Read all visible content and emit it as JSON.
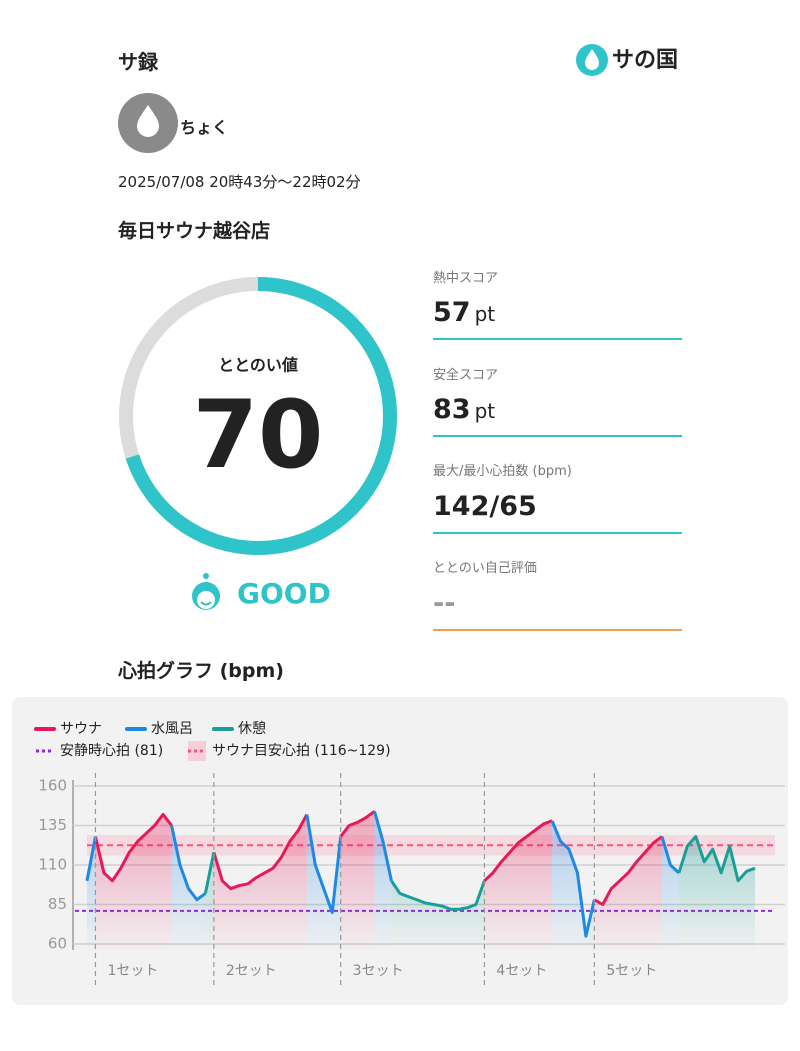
{
  "header": {
    "app_title": "サ録",
    "logo": "サの国"
  },
  "user": {
    "name": "ちょく"
  },
  "session": {
    "datetime": "2025/07/08 20時43分〜22時02分",
    "facility": "毎日サウナ越谷店"
  },
  "gauge": {
    "label": "ととのい値",
    "value": 70,
    "scale_max": 100,
    "rating": "GOOD",
    "color": "#2ec4c9"
  },
  "metrics": [
    {
      "label": "熱中スコア",
      "value": 57,
      "unit": "pt"
    },
    {
      "label": "安全スコア",
      "value": 83,
      "unit": "pt"
    },
    {
      "label": "最大/最小心拍数 (bpm)",
      "value": "142/65"
    },
    {
      "label": "ととのい自己評価",
      "value": "--"
    }
  ],
  "chart_data": {
    "type": "line",
    "title": "心拍グラフ (bpm)",
    "ylim": [
      60,
      160
    ],
    "yticks": [
      160,
      135,
      110,
      85,
      60
    ],
    "grid": true,
    "series": [
      {
        "name": "サウナ",
        "color": "#e8195a",
        "values": [
          null,
          128,
          105,
          100,
          108,
          118,
          125,
          130,
          135,
          142,
          135,
          null,
          null,
          null,
          null,
          118,
          100,
          95,
          97,
          98,
          102,
          105,
          108,
          115,
          125,
          132,
          142,
          null,
          null,
          null,
          128,
          135,
          137,
          140,
          144,
          null,
          null,
          null,
          null,
          null,
          null,
          null,
          null,
          null,
          null,
          null,
          null,
          100,
          105,
          112,
          118,
          124,
          128,
          132,
          136,
          138,
          null,
          null,
          null,
          null,
          88,
          85,
          95,
          100,
          105,
          112,
          118,
          124,
          128,
          null,
          null,
          null,
          null,
          null,
          null,
          null,
          null,
          null,
          null,
          null
        ]
      },
      {
        "name": "水風呂",
        "color": "#1e88e5",
        "values": [
          100,
          128,
          null,
          null,
          null,
          null,
          null,
          null,
          null,
          null,
          135,
          110,
          95,
          88,
          92,
          null,
          null,
          null,
          null,
          null,
          null,
          null,
          null,
          null,
          null,
          null,
          142,
          110,
          95,
          80,
          128,
          null,
          null,
          null,
          144,
          125,
          100,
          null,
          null,
          null,
          null,
          null,
          null,
          null,
          null,
          null,
          null,
          null,
          null,
          null,
          null,
          null,
          null,
          null,
          null,
          138,
          125,
          120,
          105,
          65,
          88,
          null,
          null,
          null,
          null,
          null,
          null,
          null,
          128,
          110,
          105,
          null,
          null,
          null,
          null,
          null,
          null,
          null,
          null,
          null
        ]
      },
      {
        "name": "休憩",
        "color": "#1a9e96",
        "values": [
          null,
          null,
          null,
          null,
          null,
          null,
          null,
          null,
          null,
          null,
          null,
          null,
          null,
          null,
          92,
          118,
          null,
          null,
          null,
          null,
          null,
          null,
          null,
          null,
          null,
          null,
          null,
          null,
          null,
          null,
          null,
          null,
          null,
          null,
          null,
          null,
          100,
          92,
          90,
          88,
          86,
          85,
          84,
          82,
          82,
          83,
          85,
          100,
          null,
          null,
          null,
          null,
          null,
          null,
          null,
          null,
          null,
          null,
          null,
          null,
          null,
          null,
          null,
          null,
          null,
          null,
          null,
          null,
          null,
          null,
          105,
          122,
          128,
          112,
          120,
          105,
          122,
          100,
          106,
          108
        ]
      }
    ],
    "reference_lines": {
      "resting": {
        "label": "安静時心拍 (81)",
        "value": 81,
        "color": "#8a2be2"
      },
      "target": {
        "label": "サウナ目安心拍 (116~129)",
        "range": [
          116,
          129
        ],
        "color": "#ff4f7b"
      }
    },
    "set_labels": [
      "1セット",
      "2セット",
      "3セット",
      "4セット",
      "5セット"
    ]
  }
}
